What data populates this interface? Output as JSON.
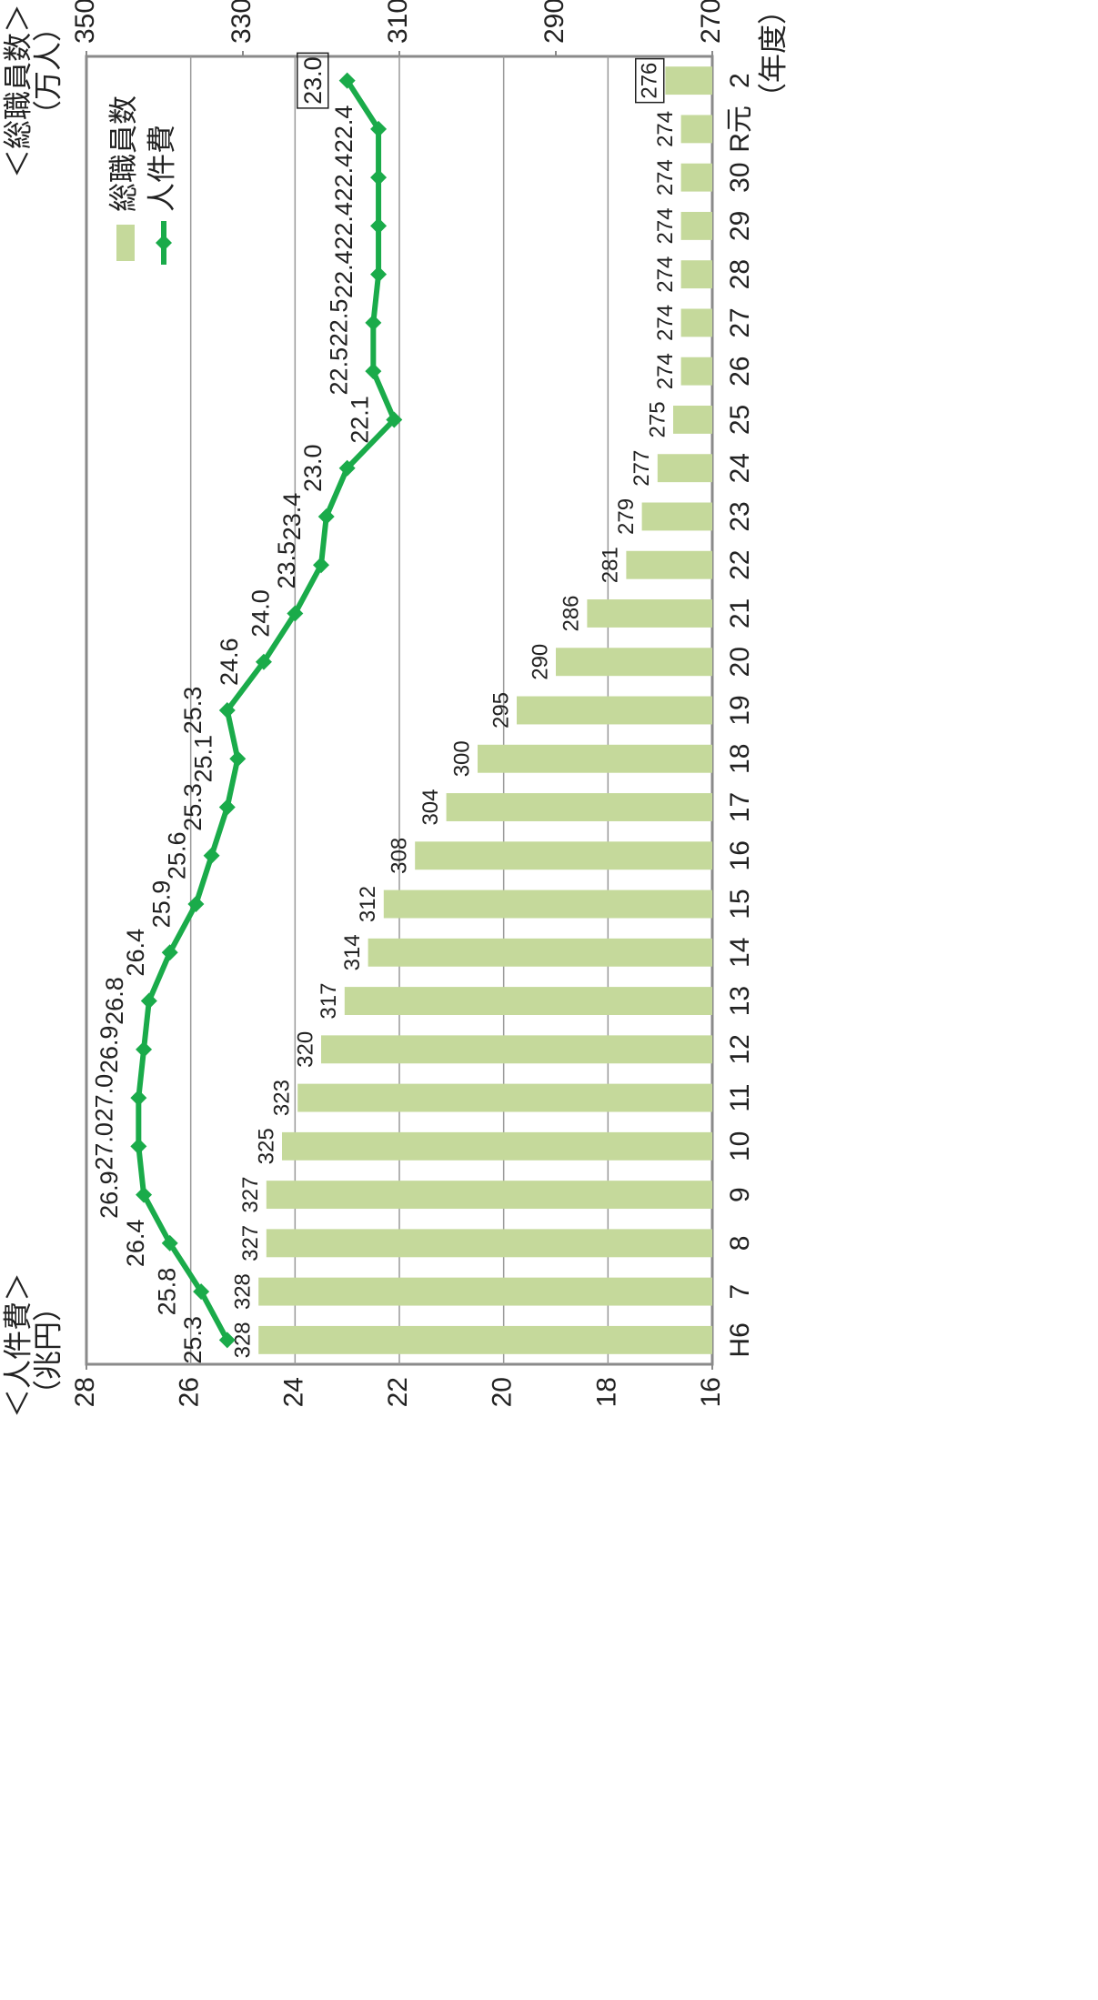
{
  "chart_data": {
    "type": "bar_line",
    "y_title": "＜人件費＞",
    "y_unit": "（兆円）",
    "y2_title": "＜総職員数＞",
    "y2_unit": "（万人）",
    "x_unit": "（年度）",
    "categories": [
      "H6",
      "7",
      "8",
      "9",
      "10",
      "11",
      "12",
      "13",
      "14",
      "15",
      "16",
      "17",
      "18",
      "19",
      "20",
      "21",
      "22",
      "23",
      "24",
      "25",
      "26",
      "27",
      "28",
      "29",
      "30",
      "R元",
      "2"
    ],
    "series": [
      {
        "name": "総職員数",
        "type": "bar",
        "axis": "y2",
        "color": "#c5d99b",
        "values": [
          328,
          328,
          327,
          327,
          325,
          323,
          320,
          317,
          314,
          312,
          308,
          304,
          300,
          295,
          290,
          286,
          281,
          279,
          277,
          275,
          274,
          274,
          274,
          274,
          274,
          274,
          276
        ]
      },
      {
        "name": "人件費",
        "type": "line",
        "axis": "y",
        "color": "#1aab4a",
        "values": [
          25.3,
          25.8,
          26.4,
          26.9,
          27.0,
          27.0,
          26.9,
          26.8,
          26.4,
          25.9,
          25.6,
          25.3,
          25.1,
          25.3,
          24.6,
          24.0,
          23.5,
          23.4,
          23.0,
          22.1,
          22.5,
          22.5,
          22.4,
          22.4,
          22.4,
          22.4,
          23.0
        ],
        "value_labels": [
          "25.3",
          "25.8",
          "26.4",
          "26.9",
          "27.0",
          "27.0",
          "26.9",
          "26.8",
          "26.4",
          "25.9",
          "25.6",
          "25.3",
          "25.1",
          "25.3",
          "24.6",
          "24.0",
          "23.5",
          "23.4",
          "23.0",
          "22.1",
          "22.5",
          "22.5",
          "22.4",
          "22.4",
          "22.4",
          "22.4",
          "23.0"
        ]
      }
    ],
    "ylim": [
      16,
      28
    ],
    "yticks": [
      16,
      18,
      20,
      22,
      24,
      26,
      28
    ],
    "y2lim": [
      270,
      350
    ],
    "y2ticks": [
      270,
      290,
      310,
      330,
      350
    ],
    "grid": true
  }
}
